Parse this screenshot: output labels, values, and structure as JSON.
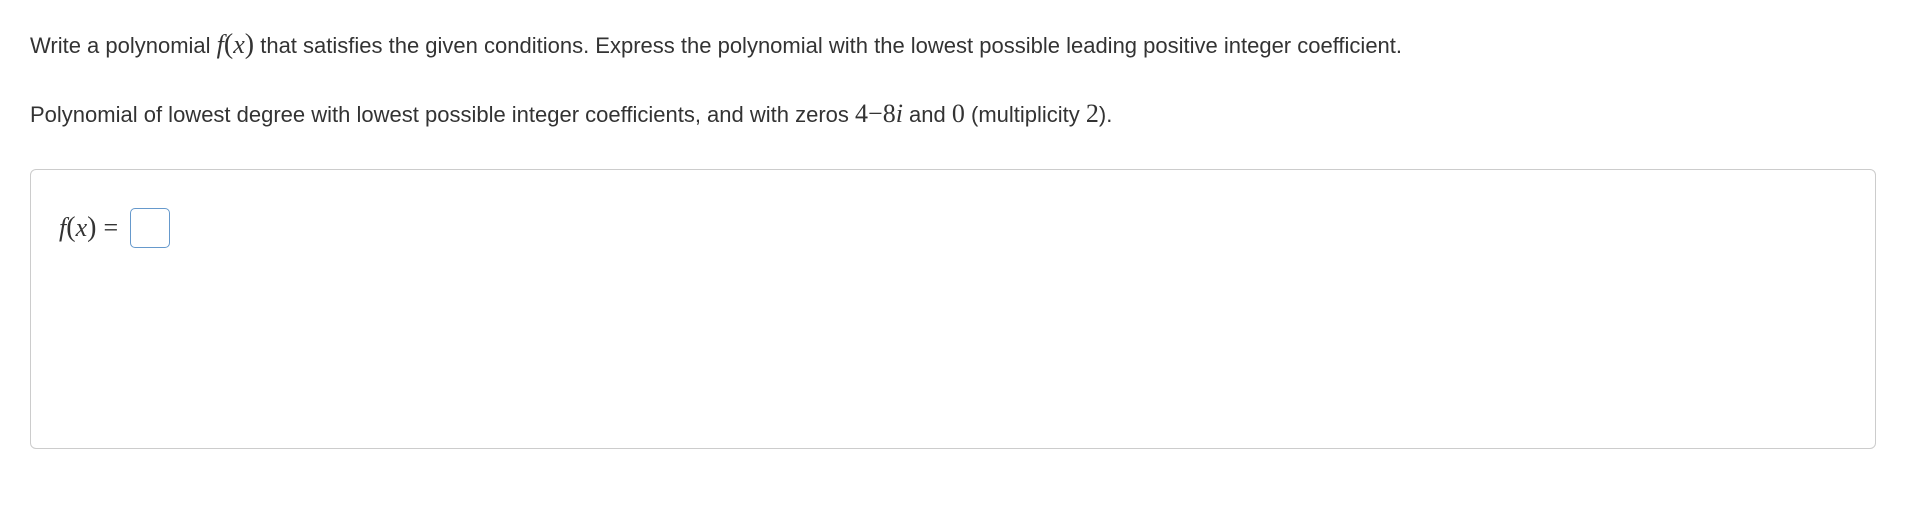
{
  "problem": {
    "intro_pre": "Write a polynomial ",
    "fn_letter": "f",
    "fn_var": "x",
    "intro_post": " that satisfies the given conditions. Express the polynomial with the lowest possible leading positive integer coefficient.",
    "conditions_pre": "Polynomial of lowest degree with lowest possible integer coefficients, and with zeros ",
    "zero1_a": "4",
    "zero1_op": "−",
    "zero1_b": "8",
    "zero1_i": "i",
    "conditions_mid": " and ",
    "zero2": "0",
    "conditions_mult_pre": " (multiplicity ",
    "mult": "2",
    "conditions_mult_post": ")."
  },
  "answer": {
    "label_fn": "f",
    "label_var": "x",
    "label_eq": "=",
    "value": ""
  },
  "colors": {
    "text": "#333333",
    "border": "#cccccc",
    "input_border": "#6699cc",
    "background": "#ffffff"
  }
}
